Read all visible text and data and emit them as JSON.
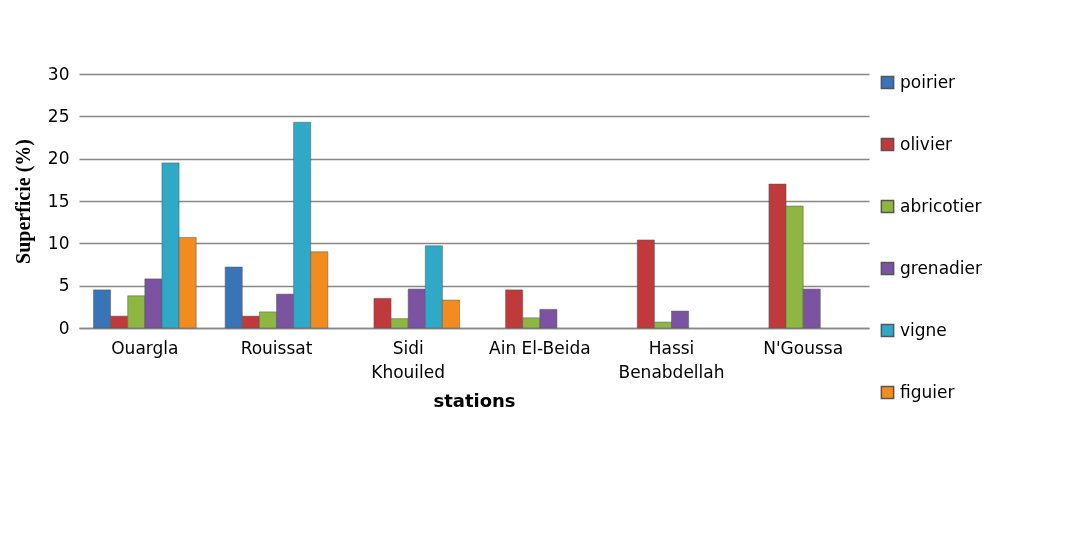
{
  "chart_data": {
    "type": "bar",
    "xlabel": "stations",
    "ylabel": "Superficie (%)",
    "categories": [
      "Ouargla",
      "Rouissat",
      "Sidi Khouiled",
      "Ain El-Beida",
      "Hassi Benabdellah",
      "N'Goussa"
    ],
    "series": [
      {
        "name": "poirier",
        "color": "#3a74b8",
        "values": [
          4.5,
          7.2,
          null,
          null,
          null,
          null
        ]
      },
      {
        "name": "olivier",
        "color": "#c0393b",
        "values": [
          1.4,
          1.4,
          3.5,
          4.5,
          10.4,
          17.0
        ]
      },
      {
        "name": "abricotier",
        "color": "#8db642",
        "values": [
          3.8,
          1.9,
          1.1,
          1.2,
          0.7,
          14.4
        ]
      },
      {
        "name": "grenadier",
        "color": "#7b53a0",
        "values": [
          5.8,
          4.0,
          4.6,
          2.2,
          2.0,
          4.6
        ]
      },
      {
        "name": "vigne",
        "color": "#2fa9c6",
        "values": [
          19.5,
          24.3,
          9.7,
          null,
          null,
          null
        ]
      },
      {
        "name": "figuier",
        "color": "#f28c1e",
        "values": [
          10.7,
          9.0,
          3.3,
          null,
          null,
          null
        ]
      }
    ],
    "ylim": [
      0,
      30
    ],
    "yticks": [
      0,
      5,
      10,
      15,
      20,
      25,
      30
    ],
    "grid": "y",
    "legend": "right"
  }
}
